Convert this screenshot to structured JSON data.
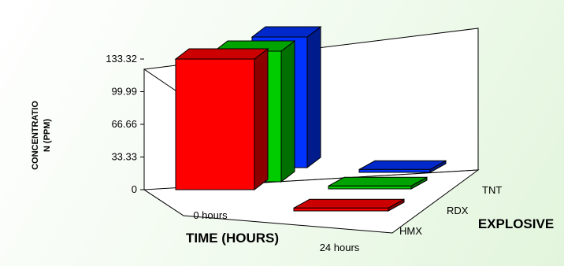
{
  "chart_data": {
    "type": "bar",
    "subtype": "3d-column",
    "categories": [
      "0 hours",
      "24 hours"
    ],
    "series": [
      {
        "name": "HMX",
        "values": [
          133.32,
          3.0
        ],
        "color": "#ff0000"
      },
      {
        "name": "RDX",
        "values": [
          133.32,
          3.0
        ],
        "color": "#00cc00"
      },
      {
        "name": "TNT",
        "values": [
          133.32,
          3.0
        ],
        "color": "#0033ff"
      }
    ],
    "xlabel": "TIME (HOURS)",
    "zlabel": "EXPLOSIVE",
    "ylabel_lines": [
      "CONCENTRATIO",
      "N (PPM)"
    ],
    "ylim": [
      0,
      133.32
    ],
    "yticks": [
      "0",
      "33.33",
      "66.66",
      "99.99",
      "133.32"
    ],
    "grid": false,
    "legend": "none"
  }
}
